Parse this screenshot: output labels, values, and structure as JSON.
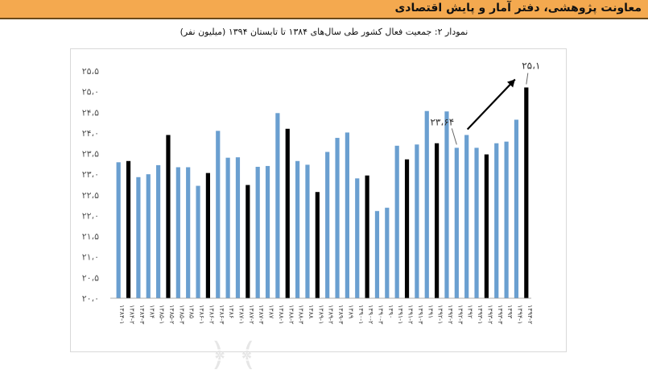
{
  "header": {
    "title": "معاونت پژوهشی، دفتر آمار و پایش اقتصادی",
    "band_color": "#f4a94f"
  },
  "caption": "نمودار ۲: جمعیت فعال کشور طی سال‌های ۱۳۸۴ تا تابستان ۱۳۹۴ (میلیون نفر)",
  "chart_data": {
    "type": "bar",
    "title": "نمودار ۲: جمعیت فعال کشور طی سال‌های ۱۳۸۴ تا تابستان ۱۳۹۴ (میلیون نفر)",
    "xlabel": "",
    "ylabel": "",
    "ylim": [
      20.0,
      25.5
    ],
    "yticks": [
      "۲۰،۰",
      "۲۰،۵",
      "۲۱،۰",
      "۲۱،۵",
      "۲۲،۰",
      "۲۲،۵",
      "۲۳،۰",
      "۲۳،۵",
      "۲۴،۰",
      "۲۴،۵",
      "۲۵،۰",
      "۲۵،۵"
    ],
    "ytick_values": [
      20.0,
      20.5,
      21.0,
      21.5,
      22.0,
      22.5,
      23.0,
      23.5,
      24.0,
      24.5,
      25.0,
      25.5
    ],
    "grid": false,
    "colors": {
      "quarterly": "#6a9fd0",
      "annual": "#000000",
      "annotation": "#000000"
    },
    "categories": [
      "۱۳۸۴-۱",
      "۱۳۸۴-۲",
      "۱۳۸۴-۳",
      "۱۳۸۴",
      "۱۳۸۵-۱",
      "۱۳۸۵-۲",
      "۱۳۸۵-۳",
      "۱۳۸۵",
      "۱۳۸۶-۱",
      "۱۳۸۶-۲",
      "۱۳۸۶-۳",
      "۱۳۸۶",
      "۱۳۸۷-۱",
      "۱۳۸۷-۲",
      "۱۳۸۷-۳",
      "۱۳۸۷",
      "۱۳۸۸-۱",
      "۱۳۸۸-۲",
      "۱۳۸۸-۳",
      "۱۳۸۸",
      "۱۳۸۹-۱",
      "۱۳۸۹-۲",
      "۱۳۸۹-۳",
      "۱۳۸۹",
      "۱۳۹۰-۱",
      "۱۳۹۰-۲",
      "۱۳۹۰-۳",
      "۱۳۹۰",
      "۱۳۹۱-۱",
      "۱۳۹۱-۲",
      "۱۳۹۱-۳",
      "۱۳۹۱",
      "۱۳۹۲-۱",
      "۱۳۹۲-۲",
      "۱۳۹۲-۳",
      "۱۳۹۲",
      "۱۳۹۳-۱",
      "۱۳۹۳-۲",
      "۱۳۹۳-۳",
      "۱۳۹۳",
      "۱۳۹۴-۱",
      "۱۳۹۴-۲"
    ],
    "values": [
      23.29,
      23.32,
      22.93,
      23.0,
      23.22,
      23.95,
      23.17,
      23.17,
      22.72,
      23.03,
      24.05,
      23.4,
      23.41,
      22.74,
      23.18,
      23.2,
      24.48,
      24.1,
      23.32,
      23.23,
      22.57,
      23.54,
      23.88,
      24.01,
      22.9,
      22.97,
      22.11,
      22.19,
      23.69,
      23.36,
      23.72,
      24.53,
      23.75,
      24.52,
      23.64,
      23.95,
      23.64,
      23.48,
      23.75,
      23.79,
      24.32,
      25.1
    ],
    "annual_flags": [
      false,
      true,
      false,
      false,
      false,
      true,
      false,
      false,
      false,
      true,
      false,
      false,
      false,
      true,
      false,
      false,
      false,
      true,
      false,
      false,
      true,
      false,
      false,
      false,
      false,
      true,
      false,
      false,
      false,
      true,
      false,
      false,
      true,
      false,
      false,
      false,
      false,
      true,
      false,
      false,
      false,
      true
    ],
    "annotations": [
      {
        "text": "۲۳،۶۴",
        "value": 23.64
      },
      {
        "text": "۲۵،۱",
        "value": 25.1
      }
    ]
  }
}
